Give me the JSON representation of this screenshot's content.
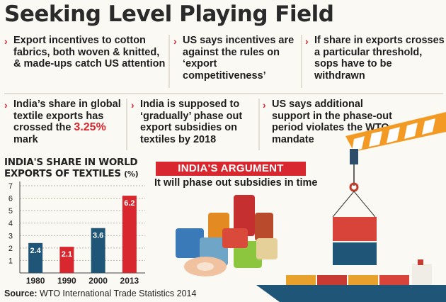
{
  "title": "Seeking Level Playing Field",
  "bullets": [
    "Export incentives to cotton fabrics, both woven & knitted, & made-ups catch US attention",
    "US says incentives are against the rules on ‘export competitiveness’",
    "If share in exports crosses a particular threshold, sops have to be withdrawn",
    "India is supposed to ‘gradually’ phase out export subsidies on textiles by 2018",
    "US says additional support in the phase-out period violates the WTO mandate"
  ],
  "bullet_india_share": {
    "prefix": "India’s share in global textile exports has crossed the ",
    "highlight": "3.25%",
    "suffix": " mark"
  },
  "argument": {
    "heading": "INDIA'S ARGUMENT",
    "text": "It will phase out subsidies in time"
  },
  "source": {
    "label": "Source:",
    "text": "WTO International Trade Statistics 2014"
  },
  "colors": {
    "accent_red": "#d8272e",
    "bar_blue": "#1f5577",
    "bar_red": "#d8272e"
  },
  "chart_data": {
    "type": "bar",
    "title": "INDIA'S SHARE IN WORLD EXPORTS OF TEXTILES",
    "unit": "(%)",
    "categories": [
      "1980",
      "1990",
      "2000",
      "2013"
    ],
    "values": [
      2.4,
      2.1,
      3.6,
      6.2
    ],
    "value_labels": [
      "2.4",
      "2.1",
      "3.6",
      "6.2"
    ],
    "bar_colors": [
      "#1f5577",
      "#d8272e",
      "#1f5577",
      "#d8272e"
    ],
    "yticks": [
      "1",
      "2",
      "3",
      "4",
      "5",
      "6",
      "7"
    ],
    "ylim": [
      0,
      7
    ],
    "grid": true
  }
}
